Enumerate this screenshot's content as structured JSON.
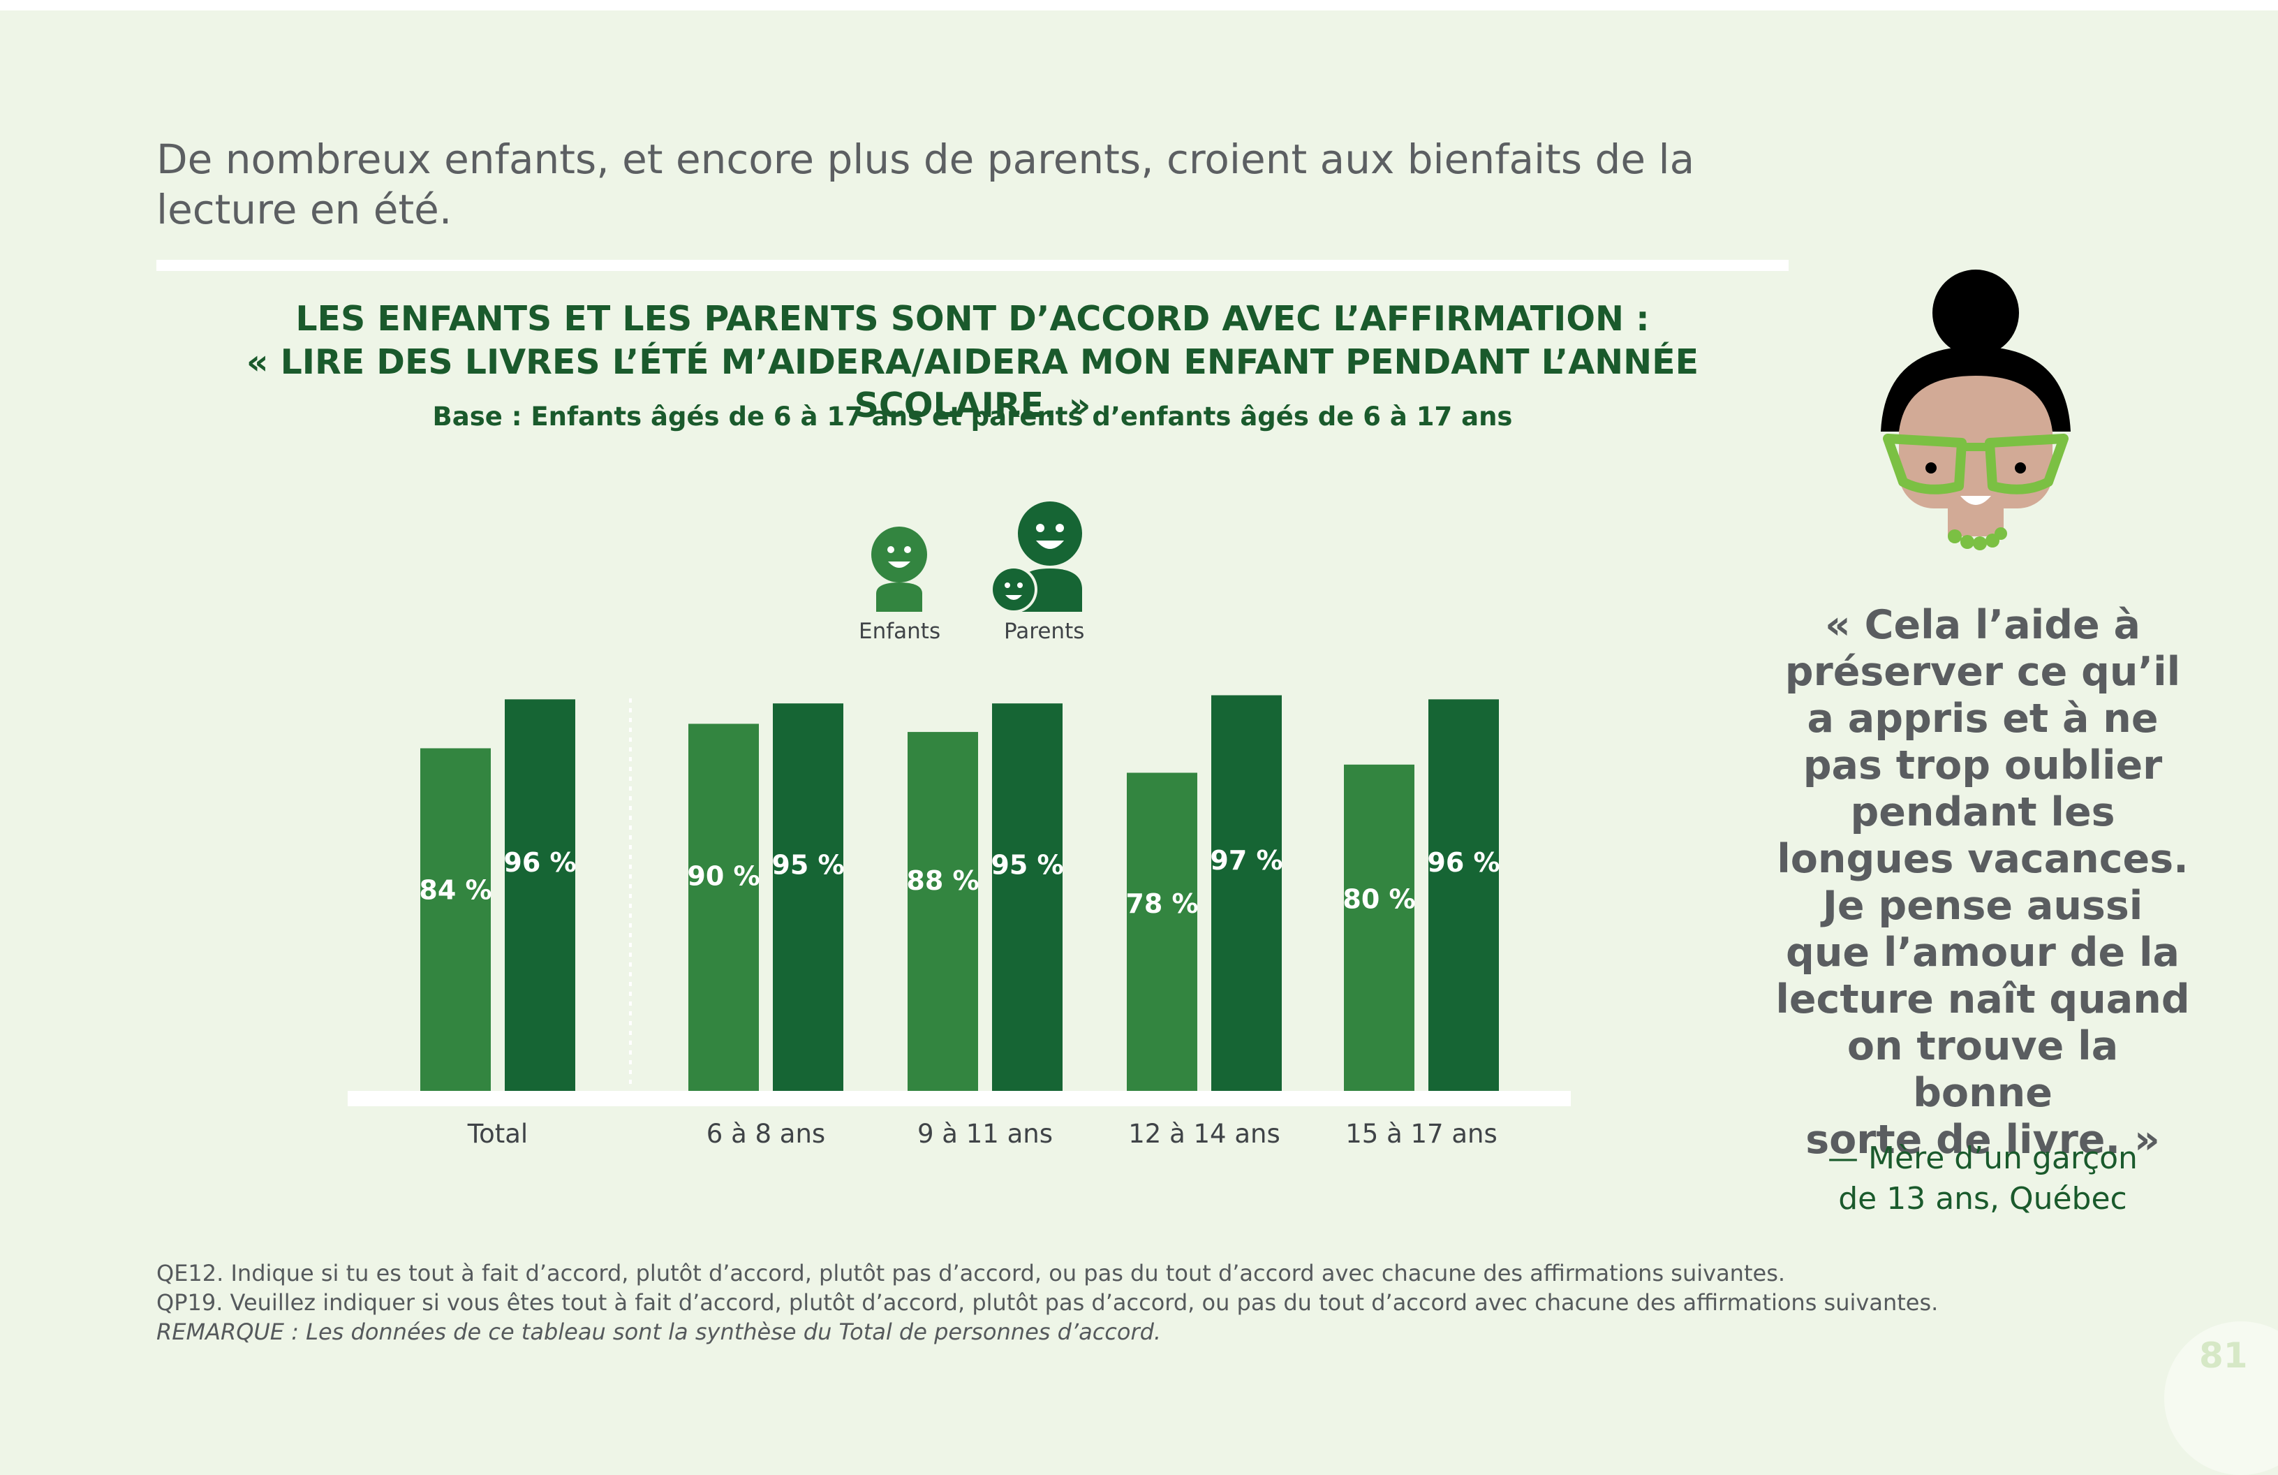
{
  "headline": "De nombreux enfants, et encore plus de parents, croient aux bienfaits de la lecture en été.",
  "chart_data": {
    "type": "bar",
    "title_line1": "LES ENFANTS ET LES PARENTS SONT D’ACCORD AVEC L’AFFIRMATION :",
    "title_line2": "« LIRE DES LIVRES L’ÉTÉ M’AIDERA/AIDERA MON ENFANT PENDANT L’ANNÉE SCOLAIRE. »",
    "subtitle": "Base : Enfants âgés de 6 à 17 ans et parents d’enfants âgés de 6 à 17 ans",
    "categories": [
      "Total",
      "6 à 8 ans",
      "9 à 11 ans",
      "12 à 14 ans",
      "15 à 17 ans"
    ],
    "series": [
      {
        "name": "Enfants",
        "values": [
          84,
          90,
          88,
          78,
          80
        ],
        "labels": [
          "84 %",
          "90 %",
          "88 %",
          "78 %",
          "80 %"
        ],
        "color": "#338540"
      },
      {
        "name": "Parents",
        "values": [
          96,
          95,
          95,
          97,
          96
        ],
        "labels": [
          "96 %",
          "95 %",
          "95 %",
          "97 %",
          "96 %"
        ],
        "color": "#166534"
      }
    ],
    "ylim": [
      0,
      100
    ],
    "legend_position": "top-center",
    "grid": false
  },
  "legend": {
    "children_icon": "child-icon",
    "parents_icon": "parent-with-child-icon"
  },
  "quote": {
    "lines": [
      "« Cela l’aide à",
      "préserver ce qu’il",
      "a appris et à ne",
      "pas trop oublier",
      "pendant les",
      "longues vacances.",
      "Je pense aussi",
      "que l’amour de la",
      "lecture naît quand",
      "on trouve la bonne",
      "sorte de livre. »"
    ],
    "attribution_line1": "— Mère d’un garçon",
    "attribution_line2": "de 13 ans, Québec",
    "illustration_icon": "woman-with-glasses-icon"
  },
  "footnotes": {
    "qe12": "QE12. Indique si tu es tout à fait d’accord, plutôt d’accord, plutôt pas d’accord, ou pas du tout d’accord avec chacune des affirmations suivantes.",
    "qp19": "QP19. Veuillez indiquer si vous êtes tout à fait d’accord, plutôt d’accord, plutôt pas d’accord, ou pas du tout d’accord avec chacune des affirmations suivantes.",
    "remarque": "REMARQUE : Les données de ce tableau sont la synthèse du Total de personnes d’accord."
  },
  "page_number": "81",
  "colors": {
    "background": "#eef5e7",
    "children": "#338540",
    "parents": "#166534",
    "title": "#1a5a2c",
    "text_gray": "#5c5f62"
  }
}
